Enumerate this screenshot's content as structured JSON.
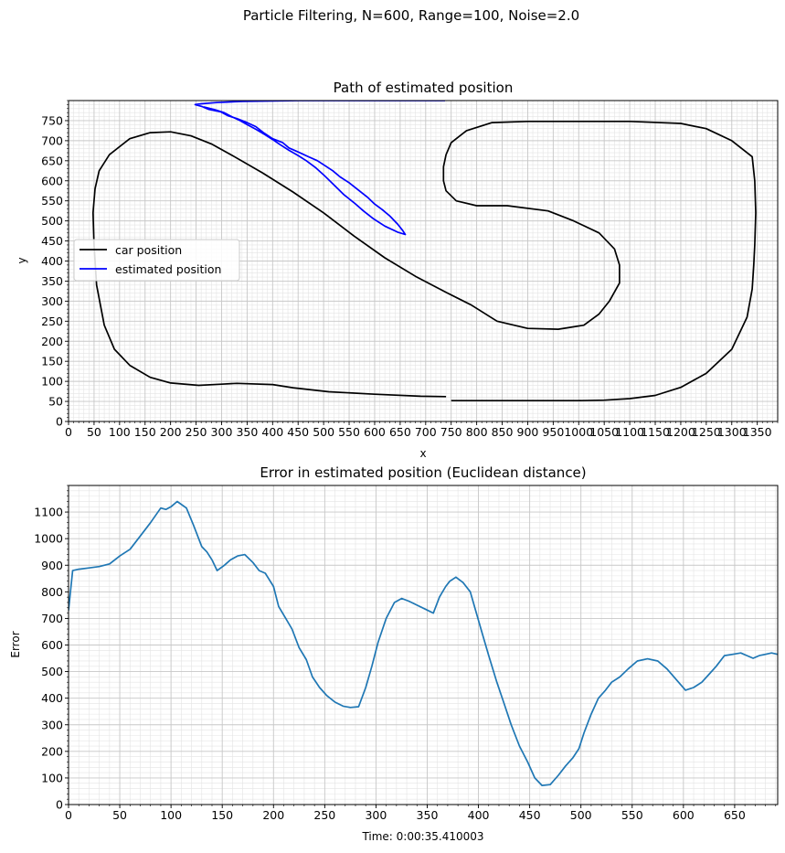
{
  "figure": {
    "suptitle": "Particle Filtering, N=600, Range=100, Noise=2.0"
  },
  "chart_data": [
    {
      "type": "line",
      "title": "Path of estimated position",
      "xlabel": "x",
      "ylabel": "y",
      "xlim": [
        0,
        1390
      ],
      "ylim": [
        0,
        800
      ],
      "xticks": [
        0,
        50,
        100,
        150,
        200,
        250,
        300,
        350,
        400,
        450,
        500,
        550,
        600,
        650,
        700,
        750,
        800,
        850,
        900,
        950,
        1000,
        1050,
        1100,
        1150,
        1200,
        1250,
        1300,
        1350
      ],
      "yticks": [
        0,
        50,
        100,
        150,
        200,
        250,
        300,
        350,
        400,
        450,
        500,
        550,
        600,
        650,
        700,
        750
      ],
      "grid": true,
      "legend_position": "center-left",
      "series": [
        {
          "name": "car position",
          "color": "#000000",
          "segments": [
            [
              [
                740,
                62
              ],
              [
                690,
                63
              ],
              [
                600,
                68
              ],
              [
                510,
                74
              ],
              [
                440,
                84
              ],
              [
                400,
                92
              ],
              [
                330,
                95
              ],
              [
                300,
                93
              ],
              [
                255,
                90
              ],
              [
                200,
                96
              ],
              [
                160,
                110
              ],
              [
                120,
                140
              ],
              [
                90,
                180
              ],
              [
                70,
                240
              ],
              [
                55,
                340
              ],
              [
                50,
                440
              ],
              [
                48,
                520
              ],
              [
                52,
                580
              ],
              [
                60,
                625
              ],
              [
                80,
                665
              ],
              [
                120,
                705
              ],
              [
                160,
                720
              ],
              [
                200,
                722
              ],
              [
                240,
                712
              ],
              [
                280,
                692
              ],
              [
                320,
                664
              ],
              [
                380,
                620
              ],
              [
                440,
                572
              ],
              [
                500,
                520
              ],
              [
                560,
                462
              ],
              [
                620,
                408
              ],
              [
                680,
                362
              ],
              [
                740,
                322
              ],
              [
                790,
                290
              ],
              [
                840,
                250
              ],
              [
                900,
                232
              ],
              [
                960,
                230
              ],
              [
                1010,
                240
              ],
              [
                1040,
                268
              ],
              [
                1060,
                300
              ],
              [
                1080,
                345
              ],
              [
                1080,
                390
              ],
              [
                1070,
                430
              ],
              [
                1040,
                470
              ],
              [
                990,
                500
              ],
              [
                940,
                525
              ],
              [
                860,
                538
              ],
              [
                800,
                538
              ],
              [
                760,
                550
              ],
              [
                740,
                575
              ],
              [
                735,
                600
              ],
              [
                735,
                635
              ],
              [
                740,
                665
              ],
              [
                750,
                695
              ],
              [
                780,
                725
              ],
              [
                830,
                745
              ],
              [
                900,
                748
              ],
              [
                1000,
                748
              ],
              [
                1100,
                748
              ],
              [
                1200,
                743
              ],
              [
                1250,
                730
              ],
              [
                1300,
                700
              ],
              [
                1340,
                660
              ],
              [
                1345,
                600
              ],
              [
                1347,
                520
              ],
              [
                1345,
                440
              ],
              [
                1343,
                390
              ],
              [
                1340,
                330
              ],
              [
                1330,
                260
              ],
              [
                1300,
                180
              ],
              [
                1250,
                120
              ],
              [
                1200,
                85
              ],
              [
                1150,
                65
              ],
              [
                1100,
                57
              ],
              [
                1050,
                53
              ],
              [
                1000,
                52
              ],
              [
                900,
                52
              ],
              [
                800,
                52
              ],
              [
                750,
                52
              ]
            ]
          ]
        },
        {
          "name": "estimated position",
          "color": "#0000ff",
          "segments": [
            [
              [
                738,
                800
              ],
              [
                600,
                800
              ],
              [
                450,
                800
              ],
              [
                340,
                798
              ],
              [
                290,
                795
              ],
              [
                260,
                792
              ],
              [
                248,
                790
              ],
              [
                262,
                785
              ],
              [
                275,
                778
              ],
              [
                298,
                772
              ],
              [
                313,
                762
              ],
              [
                330,
                755
              ],
              [
                350,
                745
              ],
              [
                367,
                735
              ],
              [
                382,
                720
              ],
              [
                400,
                705
              ],
              [
                420,
                695
              ],
              [
                432,
                682
              ],
              [
                450,
                672
              ],
              [
                470,
                660
              ],
              [
                488,
                650
              ],
              [
                500,
                640
              ],
              [
                518,
                625
              ],
              [
                532,
                610
              ],
              [
                550,
                595
              ],
              [
                570,
                575
              ],
              [
                587,
                558
              ],
              [
                600,
                542
              ],
              [
                615,
                528
              ],
              [
                630,
                512
              ],
              [
                645,
                492
              ],
              [
                655,
                476
              ],
              [
                660,
                466
              ],
              [
                645,
                472
              ],
              [
                620,
                487
              ],
              [
                598,
                505
              ],
              [
                578,
                525
              ],
              [
                560,
                545
              ],
              [
                540,
                565
              ],
              [
                520,
                590
              ],
              [
                500,
                615
              ],
              [
                485,
                632
              ],
              [
                466,
                650
              ],
              [
                450,
                663
              ],
              [
                432,
                676
              ],
              [
                415,
                690
              ],
              [
                400,
                703
              ],
              [
                385,
                715
              ],
              [
                368,
                728
              ],
              [
                350,
                740
              ],
              [
                336,
                750
              ],
              [
                320,
                760
              ],
              [
                305,
                770
              ],
              [
                285,
                778
              ],
              [
                265,
                784
              ]
            ]
          ]
        }
      ]
    },
    {
      "type": "line",
      "title": "Error in estimated position (Euclidean distance)",
      "xlabel": "Time: 0:00:35.410003",
      "ylabel": "Error",
      "xlim": [
        0,
        692
      ],
      "ylim": [
        0,
        1200
      ],
      "xticks": [
        0,
        50,
        100,
        150,
        200,
        250,
        300,
        350,
        400,
        450,
        500,
        550,
        600,
        650
      ],
      "yticks": [
        0,
        100,
        200,
        300,
        400,
        500,
        600,
        700,
        800,
        900,
        1000,
        1100
      ],
      "grid": true,
      "series": [
        {
          "color": "#1f77b4",
          "x": [
            0,
            4,
            10,
            20,
            30,
            40,
            50,
            60,
            70,
            80,
            90,
            95,
            100,
            106,
            115,
            122,
            130,
            135,
            140,
            145,
            152,
            158,
            165,
            172,
            180,
            186,
            192,
            200,
            205,
            212,
            218,
            225,
            232,
            238,
            245,
            252,
            260,
            268,
            275,
            283,
            290,
            296,
            302,
            310,
            318,
            325,
            332,
            340,
            348,
            356,
            362,
            368,
            372,
            378,
            385,
            392,
            398,
            404,
            410,
            418,
            425,
            432,
            440,
            448,
            455,
            462,
            470,
            478,
            485,
            492,
            498,
            503,
            510,
            517,
            524,
            530,
            538,
            546,
            555,
            565,
            575,
            584,
            593,
            602,
            610,
            618,
            625,
            632,
            640,
            648,
            656,
            662,
            668,
            674,
            680,
            686,
            692
          ],
          "y": [
            730,
            880,
            885,
            890,
            895,
            905,
            935,
            960,
            1010,
            1060,
            1115,
            1110,
            1120,
            1140,
            1115,
            1050,
            970,
            950,
            920,
            880,
            900,
            920,
            935,
            940,
            910,
            880,
            870,
            820,
            745,
            700,
            660,
            590,
            545,
            480,
            440,
            410,
            385,
            370,
            365,
            368,
            440,
            520,
            610,
            700,
            760,
            775,
            765,
            750,
            735,
            720,
            780,
            820,
            840,
            855,
            835,
            800,
            720,
            640,
            560,
            460,
            380,
            300,
            220,
            160,
            100,
            72,
            75,
            110,
            145,
            175,
            210,
            270,
            340,
            400,
            430,
            460,
            480,
            510,
            540,
            548,
            540,
            510,
            470,
            430,
            440,
            460,
            490,
            520,
            560,
            565,
            570,
            560,
            550,
            560,
            565,
            570,
            565
          ]
        }
      ]
    }
  ]
}
